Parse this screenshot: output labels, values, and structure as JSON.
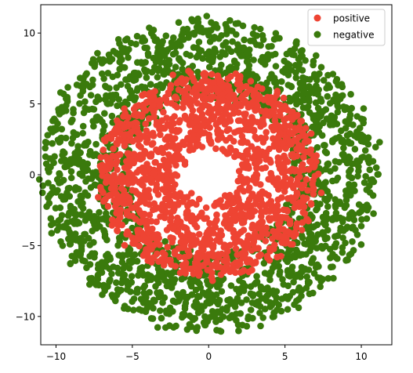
{
  "chart_data": {
    "type": "scatter",
    "title": "",
    "xlabel": "",
    "ylabel": "",
    "xlim": [
      -11.0,
      12.0
    ],
    "ylim": [
      -12.0,
      12.0
    ],
    "xticks": [
      -10,
      -5,
      0,
      5,
      10
    ],
    "yticks": [
      -10,
      -5,
      0,
      5,
      10
    ],
    "grid": false,
    "legend_position": "top-right",
    "series": [
      {
        "name": "positive",
        "color": "#ee4433",
        "shape": "annulus",
        "inner_radius": 2.0,
        "outer_radius": 7.2,
        "count": 1500,
        "sample_points": [
          [
            0.3,
            6.5
          ],
          [
            5.0,
            3.5
          ],
          [
            -5.5,
            0.5
          ],
          [
            1.0,
            -6.8
          ],
          [
            -3.0,
            -5.5
          ],
          [
            4.5,
            -4.0
          ]
        ]
      },
      {
        "name": "negative",
        "color": "#3a7a0c",
        "shape": "annulus",
        "inner_radius": 5.5,
        "outer_radius": 11.0,
        "count": 2000,
        "sample_points": [
          [
            11.2,
            2.3
          ],
          [
            -9.7,
            5.8
          ],
          [
            -9.9,
            -1.1
          ],
          [
            -0.7,
            11.0
          ],
          [
            -0.8,
            -11.0
          ],
          [
            9.5,
            -2.8
          ]
        ]
      }
    ]
  }
}
